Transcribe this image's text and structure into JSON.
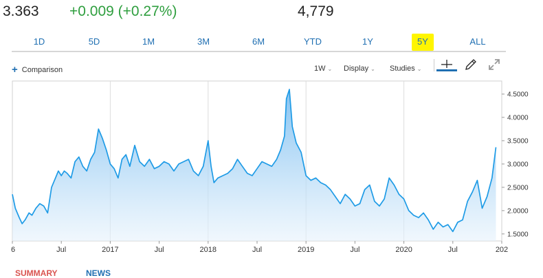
{
  "quote": {
    "price": "3.363",
    "change": "+0.009 (+0.27%)",
    "volume": "4,779"
  },
  "ranges": [
    {
      "label": "1D",
      "active": false
    },
    {
      "label": "5D",
      "active": false
    },
    {
      "label": "1M",
      "active": false
    },
    {
      "label": "3M",
      "active": false
    },
    {
      "label": "6M",
      "active": false
    },
    {
      "label": "YTD",
      "active": false
    },
    {
      "label": "1Y",
      "active": false
    },
    {
      "label": "5Y",
      "active": true
    },
    {
      "label": "ALL",
      "active": false
    }
  ],
  "toolbar": {
    "comparison_label": "Comparison",
    "interval_label": "1W",
    "display_label": "Display",
    "studies_label": "Studies",
    "icons": [
      "crosshair-icon",
      "pencil-icon",
      "expand-icon"
    ]
  },
  "tabs": {
    "summary_label": "SUMMARY",
    "news_label": "NEWS"
  },
  "colors": {
    "accent": "#1f6fb2",
    "positive": "#2e9e3e",
    "line": "#1e9be6",
    "highlight": "#fff500",
    "summary_tab": "#d9534f"
  },
  "chart_data": {
    "type": "area",
    "x_tick_labels": [
      "6",
      "Jul",
      "2017",
      "Jul",
      "2018",
      "Jul",
      "2019",
      "Jul",
      "2020",
      "Jul",
      "202"
    ],
    "y_tick_labels": [
      "1.5000",
      "2.0000",
      "2.5000",
      "3.0000",
      "3.5000",
      "4.0000",
      "4.5000"
    ],
    "ylim": [
      1.35,
      4.78
    ],
    "x_range": [
      2016.0,
      2021.0
    ],
    "grid": "vertical at year boundaries",
    "x": [
      2016.0,
      2016.03,
      2016.07,
      2016.1,
      2016.13,
      2016.17,
      2016.2,
      2016.24,
      2016.28,
      2016.32,
      2016.36,
      2016.4,
      2016.44,
      2016.47,
      2016.5,
      2016.53,
      2016.56,
      2016.6,
      2016.64,
      2016.68,
      2016.72,
      2016.76,
      2016.8,
      2016.84,
      2016.88,
      2016.92,
      2016.96,
      2017.0,
      2017.04,
      2017.08,
      2017.12,
      2017.16,
      2017.2,
      2017.25,
      2017.3,
      2017.35,
      2017.4,
      2017.45,
      2017.5,
      2017.55,
      2017.6,
      2017.65,
      2017.7,
      2017.75,
      2017.8,
      2017.85,
      2017.9,
      2017.95,
      2018.0,
      2018.03,
      2018.06,
      2018.1,
      2018.15,
      2018.2,
      2018.25,
      2018.3,
      2018.35,
      2018.4,
      2018.45,
      2018.5,
      2018.55,
      2018.6,
      2018.65,
      2018.7,
      2018.74,
      2018.78,
      2018.8,
      2018.83,
      2018.86,
      2018.9,
      2018.95,
      2019.0,
      2019.05,
      2019.1,
      2019.15,
      2019.2,
      2019.25,
      2019.3,
      2019.35,
      2019.4,
      2019.45,
      2019.5,
      2019.55,
      2019.6,
      2019.65,
      2019.7,
      2019.75,
      2019.8,
      2019.85,
      2019.9,
      2019.95,
      2020.0,
      2020.05,
      2020.1,
      2020.15,
      2020.2,
      2020.25,
      2020.3,
      2020.35,
      2020.4,
      2020.45,
      2020.5,
      2020.55,
      2020.6,
      2020.65,
      2020.7,
      2020.75,
      2020.8,
      2020.85,
      2020.9,
      2020.94
    ],
    "y": [
      2.35,
      2.05,
      1.85,
      1.72,
      1.8,
      1.95,
      1.9,
      2.05,
      2.15,
      2.1,
      1.95,
      2.5,
      2.7,
      2.85,
      2.75,
      2.85,
      2.8,
      2.7,
      3.05,
      3.15,
      2.95,
      2.85,
      3.1,
      3.25,
      3.75,
      3.55,
      3.3,
      3.0,
      2.9,
      2.7,
      3.1,
      3.2,
      2.95,
      3.4,
      3.05,
      2.95,
      3.1,
      2.9,
      2.95,
      3.05,
      3.0,
      2.85,
      3.0,
      3.05,
      3.1,
      2.85,
      2.75,
      2.95,
      3.5,
      2.95,
      2.6,
      2.7,
      2.75,
      2.8,
      2.9,
      3.1,
      2.95,
      2.8,
      2.75,
      2.9,
      3.05,
      3.0,
      2.95,
      3.1,
      3.3,
      3.6,
      4.4,
      4.6,
      3.8,
      3.45,
      3.25,
      2.75,
      2.65,
      2.7,
      2.6,
      2.55,
      2.45,
      2.3,
      2.15,
      2.35,
      2.25,
      2.1,
      2.15,
      2.45,
      2.55,
      2.2,
      2.1,
      2.25,
      2.7,
      2.55,
      2.35,
      2.25,
      2.0,
      1.9,
      1.85,
      1.95,
      1.8,
      1.6,
      1.75,
      1.65,
      1.7,
      1.55,
      1.75,
      1.8,
      2.2,
      2.4,
      2.65,
      2.05,
      2.3,
      2.7,
      3.36
    ]
  }
}
